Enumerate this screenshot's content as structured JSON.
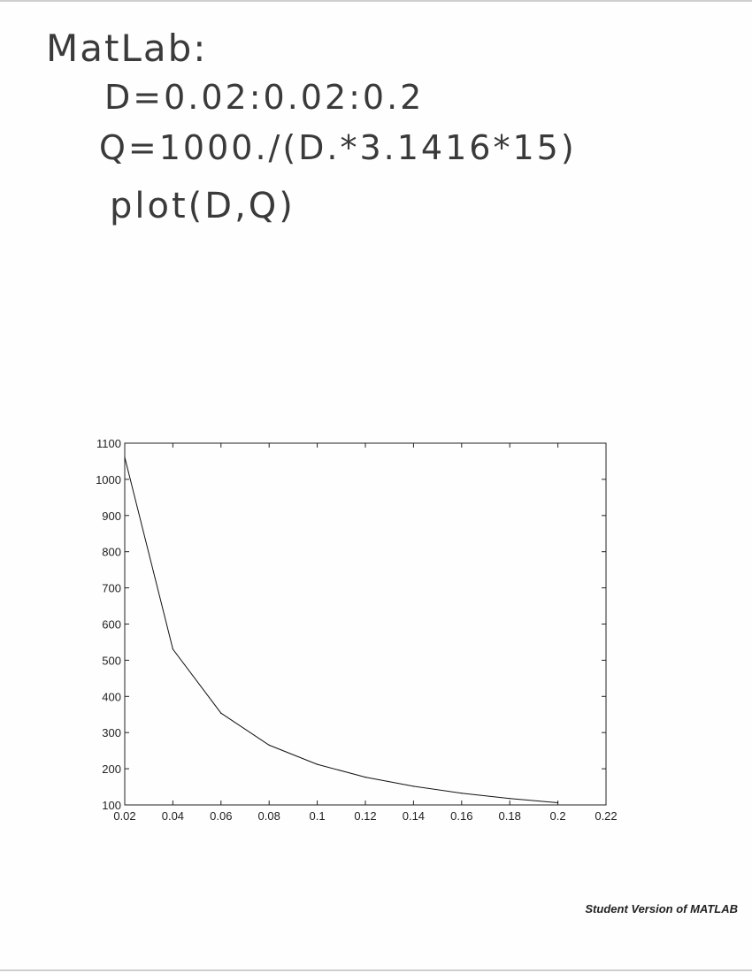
{
  "handwriting": {
    "title": "MatLab:",
    "line1": "D=0.02:0.02:0.2",
    "line2": "Q=1000./(D.*3.1416*15)",
    "line3": "plot(D,Q)"
  },
  "footer": {
    "watermark": "Student Version of MATLAB"
  },
  "colors": {
    "line": "#111111",
    "axes": "#222222",
    "ink": "#3a3a3a"
  },
  "chart_data": {
    "type": "line",
    "title": "",
    "xlabel": "",
    "ylabel": "",
    "grid": false,
    "xlim": [
      0.02,
      0.22
    ],
    "ylim": [
      100,
      1100
    ],
    "xticks": [
      0.02,
      0.04,
      0.06,
      0.08,
      0.1,
      0.12,
      0.14,
      0.16,
      0.18,
      0.2,
      0.22
    ],
    "xtick_labels": [
      "0.02",
      "0.04",
      "0.06",
      "0.08",
      "0.1",
      "0.12",
      "0.14",
      "0.16",
      "0.18",
      "0.2",
      "0.22"
    ],
    "yticks": [
      100,
      200,
      300,
      400,
      500,
      600,
      700,
      800,
      900,
      1000,
      1100
    ],
    "ytick_labels": [
      "100",
      "200",
      "300",
      "400",
      "500",
      "600",
      "700",
      "800",
      "900",
      "1000",
      "1100"
    ],
    "series": [
      {
        "x": [
          0.02,
          0.04,
          0.06,
          0.08,
          0.1,
          0.12,
          0.14,
          0.16,
          0.18,
          0.2
        ],
        "y": [
          1061.0,
          530.5,
          353.7,
          265.3,
          212.2,
          176.8,
          151.6,
          132.6,
          117.9,
          106.1
        ]
      }
    ]
  }
}
